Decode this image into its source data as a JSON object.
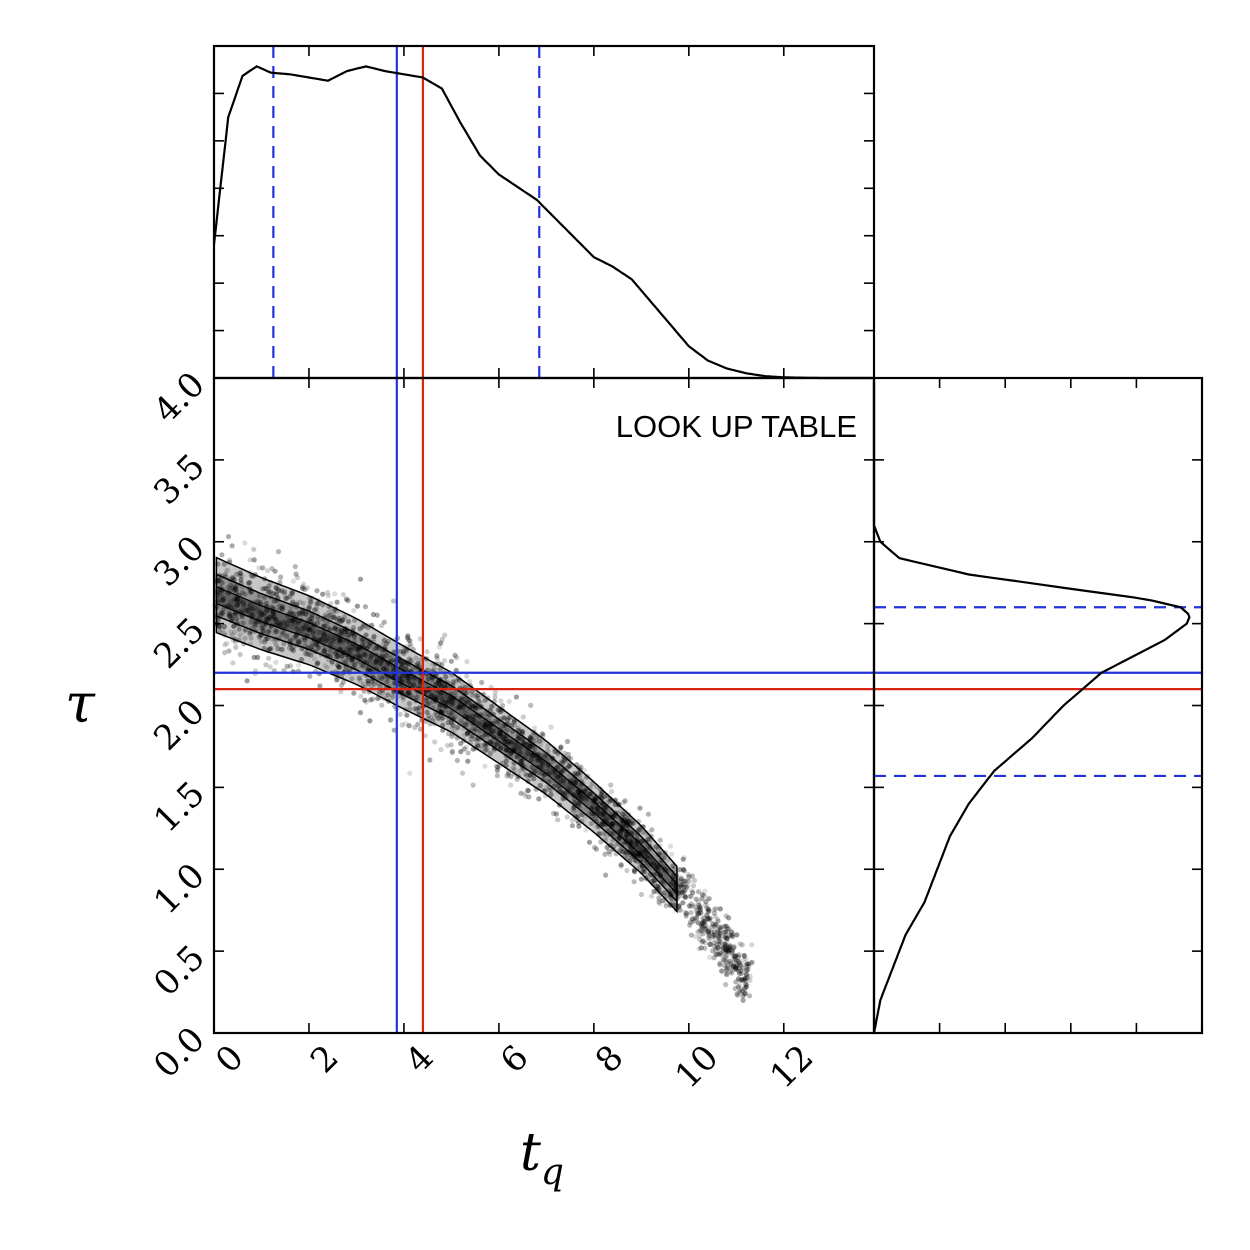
{
  "chart_data": {
    "type": "scatter",
    "subtype": "corner-plot",
    "title": "",
    "annotation": "LOOK UP TABLE",
    "xlabel": "t_q",
    "ylabel": "τ",
    "xlim": [
      0,
      13.9
    ],
    "ylim": [
      0,
      4.0
    ],
    "x_ticks": [
      0,
      2,
      4,
      6,
      8,
      10,
      12
    ],
    "x_tick_labels": [
      "0",
      "2",
      "4",
      "6",
      "8",
      "10",
      "12"
    ],
    "y_ticks": [
      0.0,
      0.5,
      1.0,
      1.5,
      2.0,
      2.5,
      3.0,
      3.5,
      4.0
    ],
    "y_tick_labels": [
      "0.0",
      "0.5",
      "1.0",
      "1.5",
      "2.0",
      "2.5",
      "3.0",
      "3.5",
      "4.0"
    ],
    "grid": false,
    "colors": {
      "median": "#2233dd",
      "truth": "#dd2211",
      "points": "#000000",
      "contour_fill": "#999999"
    },
    "joint_ridge": {
      "x": [
        0.0,
        1.0,
        2.0,
        3.0,
        4.0,
        5.0,
        6.0,
        7.0,
        8.0,
        9.0,
        10.0,
        10.8,
        11.2
      ],
      "y": [
        2.68,
        2.56,
        2.46,
        2.33,
        2.17,
        2.02,
        1.82,
        1.62,
        1.38,
        1.12,
        0.8,
        0.52,
        0.35
      ]
    },
    "marginal_tq": {
      "x": [
        0.0,
        0.3,
        0.6,
        0.9,
        1.2,
        1.6,
        2.0,
        2.4,
        2.8,
        3.2,
        3.6,
        4.0,
        4.4,
        4.8,
        5.2,
        5.6,
        6.0,
        6.4,
        6.8,
        7.2,
        7.6,
        8.0,
        8.4,
        8.8,
        9.2,
        9.6,
        10.0,
        10.4,
        10.8,
        11.2,
        11.6,
        12.0,
        12.4,
        12.8,
        13.2,
        13.9
      ],
      "density": [
        0.42,
        0.82,
        0.95,
        0.98,
        0.96,
        0.955,
        0.945,
        0.935,
        0.965,
        0.98,
        0.965,
        0.955,
        0.945,
        0.91,
        0.8,
        0.7,
        0.64,
        0.6,
        0.56,
        0.5,
        0.44,
        0.38,
        0.35,
        0.31,
        0.24,
        0.17,
        0.1,
        0.055,
        0.03,
        0.015,
        0.006,
        0.002,
        0.001,
        0.0,
        0.0,
        0.0
      ]
    },
    "marginal_tau": {
      "y": [
        0.0,
        0.2,
        0.4,
        0.6,
        0.8,
        1.0,
        1.2,
        1.4,
        1.6,
        1.8,
        2.0,
        2.1,
        2.2,
        2.3,
        2.4,
        2.5,
        2.55,
        2.6,
        2.65,
        2.7,
        2.8,
        2.9,
        3.0,
        3.1,
        4.0
      ],
      "density": [
        0.0,
        0.02,
        0.06,
        0.1,
        0.16,
        0.2,
        0.24,
        0.3,
        0.38,
        0.5,
        0.6,
        0.66,
        0.72,
        0.82,
        0.92,
        0.99,
        1.0,
        0.97,
        0.86,
        0.67,
        0.3,
        0.08,
        0.02,
        0.0,
        0.0
      ]
    },
    "median_tq": 3.85,
    "ci_tq": [
      1.25,
      6.85
    ],
    "truth_tq": 4.4,
    "median_tau": 2.2,
    "ci_tau": [
      1.57,
      2.6
    ],
    "truth_tau": 2.1
  }
}
